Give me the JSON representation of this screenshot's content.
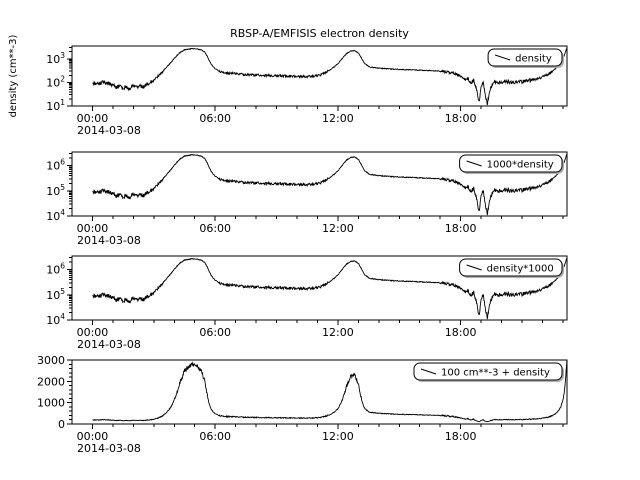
{
  "figure": {
    "background": "#ffffff",
    "foreground": "#000000"
  },
  "chart_data": {
    "type": "line",
    "title": "RBSP-A/EMFISIS  electron density",
    "date_label": "2014-03-08",
    "x_unit": "time (UT) on 2014-03-08",
    "x_range_hours": [
      -1.0,
      23.2
    ],
    "x_major_ticks": [
      0,
      6,
      12,
      18
    ],
    "x_tick_labels": [
      "00:00",
      "06:00",
      "12:00",
      "18:00"
    ],
    "x_minor_step_hours": 1,
    "grid": false,
    "legend_position": "top-right",
    "noise": {
      "seed": 20140308,
      "log10_amp": 0.05
    },
    "series_base": {
      "name": "density",
      "units": "cm**-3",
      "hours": [
        0.0,
        0.25,
        0.5,
        0.75,
        1.0,
        1.2,
        1.35,
        1.5,
        1.65,
        1.8,
        1.95,
        2.1,
        2.3,
        2.5,
        2.7,
        2.9,
        3.1,
        3.3,
        3.5,
        3.7,
        3.9,
        4.1,
        4.3,
        4.5,
        4.7,
        4.9,
        5.1,
        5.3,
        5.5,
        5.65,
        5.8,
        6.0,
        6.2,
        6.5,
        6.8,
        7.2,
        7.6,
        8.0,
        8.4,
        8.8,
        9.2,
        9.6,
        10.0,
        10.4,
        10.8,
        11.1,
        11.4,
        11.7,
        12.0,
        12.2,
        12.4,
        12.6,
        12.8,
        13.0,
        13.15,
        13.3,
        13.5,
        13.8,
        14.2,
        14.6,
        15.0,
        15.4,
        15.8,
        16.2,
        16.6,
        17.0,
        17.3,
        17.6,
        17.85,
        18.05,
        18.2,
        18.35,
        18.5,
        18.65,
        18.8,
        18.9,
        19.0,
        19.1,
        19.2,
        19.3,
        19.45,
        19.6,
        19.8,
        20.0,
        20.3,
        20.6,
        20.9,
        21.2,
        21.5,
        21.8,
        22.1,
        22.4,
        22.7,
        22.9,
        23.05,
        23.15,
        23.2
      ],
      "values": [
        95,
        88,
        100,
        92,
        75,
        60,
        85,
        55,
        70,
        50,
        72,
        60,
        70,
        65,
        85,
        110,
        150,
        220,
        340,
        520,
        800,
        1300,
        1900,
        2400,
        2600,
        2650,
        2600,
        2450,
        1900,
        1100,
        600,
        380,
        300,
        260,
        240,
        225,
        215,
        205,
        200,
        195,
        190,
        185,
        180,
        178,
        182,
        200,
        260,
        380,
        620,
        1000,
        1600,
        2100,
        2250,
        1800,
        1100,
        650,
        470,
        420,
        390,
        370,
        355,
        345,
        335,
        325,
        315,
        300,
        280,
        250,
        210,
        170,
        130,
        150,
        90,
        130,
        40,
        14,
        60,
        110,
        30,
        13,
        55,
        95,
        105,
        98,
        105,
        98,
        104,
        112,
        125,
        145,
        185,
        260,
        430,
        700,
        1300,
        2300,
        3000
      ]
    },
    "panels": [
      {
        "legend": "density",
        "scale": "log",
        "ylim": [
          10,
          3500
        ],
        "major_ticks": [
          10,
          100,
          1000
        ],
        "expr": {
          "mul": 1,
          "add": 0
        },
        "ylabel": "density (cm**-3)"
      },
      {
        "legend": "1000*density",
        "scale": "log",
        "ylim": [
          10000,
          3500000
        ],
        "major_ticks": [
          10000,
          100000,
          1000000
        ],
        "expr": {
          "mul": 1000,
          "add": 0
        }
      },
      {
        "legend": "density*1000",
        "scale": "log",
        "ylim": [
          10000,
          3500000
        ],
        "major_ticks": [
          10000,
          100000,
          1000000
        ],
        "expr": {
          "mul": 1000,
          "add": 0
        }
      },
      {
        "legend": "100 cm**-3 + density",
        "scale": "linear",
        "ylim": [
          0,
          3000
        ],
        "major_ticks": [
          0,
          1000,
          2000,
          3000
        ],
        "minor_step": 200,
        "expr": {
          "mul": 1,
          "add": 100
        }
      }
    ]
  }
}
